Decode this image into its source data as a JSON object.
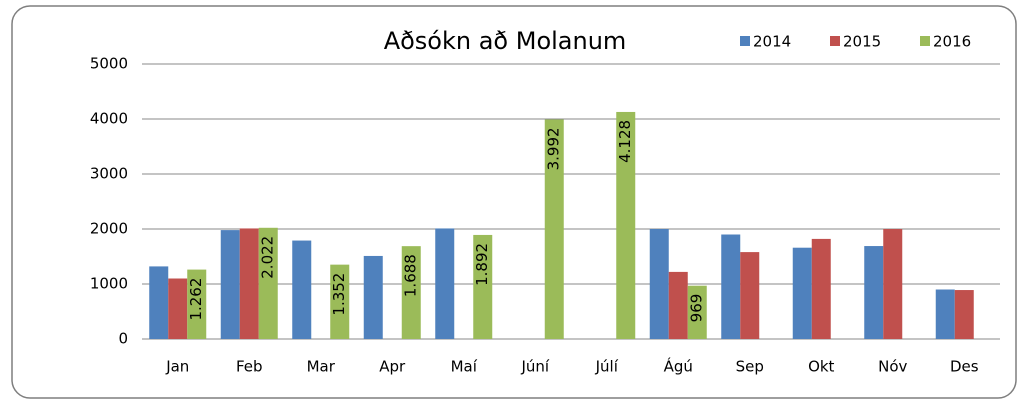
{
  "chart_data": {
    "type": "bar",
    "title": "Aðsókn að Molanum",
    "categories": [
      "Jan",
      "Feb",
      "Mar",
      "Apr",
      "Maí",
      "Júní",
      "Júlí",
      "Ágú",
      "Sep",
      "Okt",
      "Nóv",
      "Des"
    ],
    "series": [
      {
        "name": "2014",
        "color": "#4f81bd",
        "values": [
          1320,
          1980,
          1790,
          1510,
          2010,
          null,
          null,
          2000,
          1900,
          1660,
          1690,
          900
        ]
      },
      {
        "name": "2015",
        "color": "#c0504d",
        "values": [
          1100,
          2010,
          null,
          null,
          null,
          null,
          null,
          1220,
          1580,
          1820,
          2000,
          890
        ]
      },
      {
        "name": "2016",
        "color": "#9bbb59",
        "values": [
          1262,
          2022,
          1352,
          1688,
          1892,
          3992,
          4128,
          969,
          null,
          null,
          null,
          null
        ],
        "value_labels": [
          "1.262",
          "2.022",
          "1.352",
          "1.688",
          "1.892",
          "3.992",
          "4.128",
          "969",
          null,
          null,
          null,
          null
        ]
      }
    ],
    "ylim": [
      0,
      5000
    ],
    "yticks": [
      0,
      1000,
      2000,
      3000,
      4000,
      5000
    ],
    "grid": true,
    "legend": "top-right"
  }
}
